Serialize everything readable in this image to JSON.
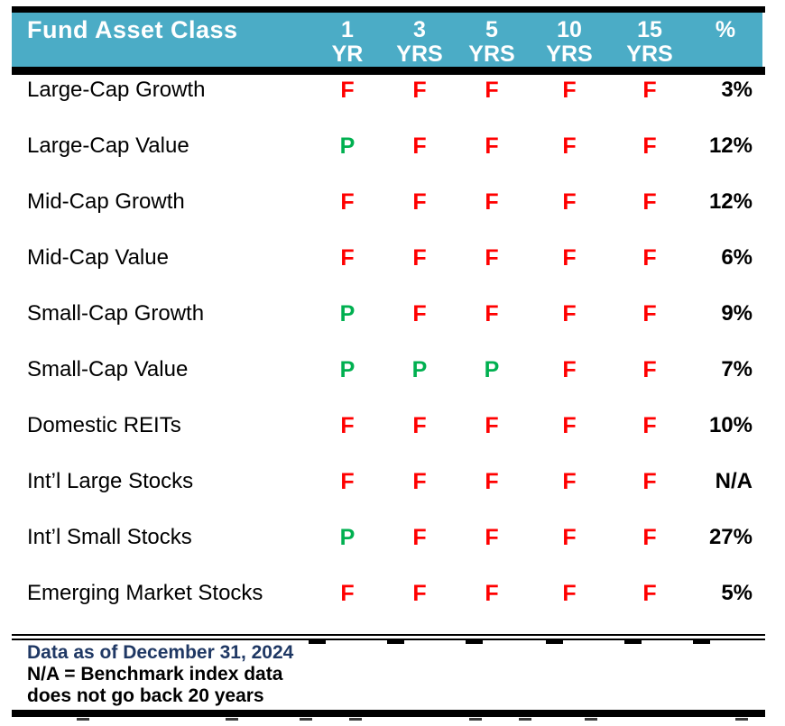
{
  "table": {
    "header": {
      "label": "Fund Asset Class",
      "bg_color": "#4BACC6",
      "text_color": "#FFFFFF",
      "columns": [
        {
          "line1": "1",
          "line2": "YR"
        },
        {
          "line1": "3",
          "line2": "YRS"
        },
        {
          "line1": "5",
          "line2": "YRS"
        },
        {
          "line1": "10",
          "line2": "YRS"
        },
        {
          "line1": "15",
          "line2": "YRS"
        },
        {
          "line1": "%",
          "line2": ""
        }
      ]
    },
    "grade_colors": {
      "F": "#FF0000",
      "P": "#00B050"
    },
    "rows": [
      {
        "label": "Large-Cap Growth",
        "grades": [
          "F",
          "F",
          "F",
          "F",
          "F"
        ],
        "pct": "3%"
      },
      {
        "label": "Large-Cap Value",
        "grades": [
          "P",
          "F",
          "F",
          "F",
          "F"
        ],
        "pct": "12%"
      },
      {
        "label": "Mid-Cap Growth",
        "grades": [
          "F",
          "F",
          "F",
          "F",
          "F"
        ],
        "pct": "12%"
      },
      {
        "label": "Mid-Cap Value",
        "grades": [
          "F",
          "F",
          "F",
          "F",
          "F"
        ],
        "pct": "6%"
      },
      {
        "label": "Small-Cap Growth",
        "grades": [
          "P",
          "F",
          "F",
          "F",
          "F"
        ],
        "pct": "9%"
      },
      {
        "label": "Small-Cap Value",
        "grades": [
          "P",
          "P",
          "P",
          "F",
          "F"
        ],
        "pct": "7%"
      },
      {
        "label": "Domestic REITs",
        "grades": [
          "F",
          "F",
          "F",
          "F",
          "F"
        ],
        "pct": "10%"
      },
      {
        "label": "Int’l Large Stocks",
        "grades": [
          "F",
          "F",
          "F",
          "F",
          "F"
        ],
        "pct": "N/A"
      },
      {
        "label": "Int’l Small Stocks",
        "grades": [
          "P",
          "F",
          "F",
          "F",
          "F"
        ],
        "pct": "27%"
      },
      {
        "label": "Emerging Market Stocks",
        "grades": [
          "F",
          "F",
          "F",
          "F",
          "F"
        ],
        "pct": "5%"
      }
    ]
  },
  "footnote": {
    "line1": "Data as of December 31, 2024",
    "line1_color": "#1F3864",
    "line2": "N/A = Benchmark index data",
    "line3": "does not go back 20 years"
  }
}
